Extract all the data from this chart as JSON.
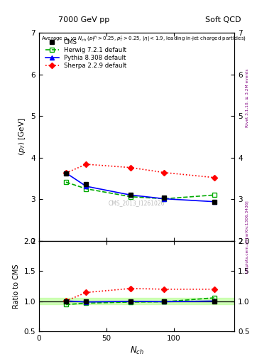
{
  "title_left": "7000 GeV pp",
  "title_right": "Soft QCD",
  "watermark": "CMS_2013_I1261026",
  "rivet_label": "Rivet 3.1.10, ≥ 3.2M events",
  "mcplots_label": "mcplots.cern.ch [arXiv:1306.3436]",
  "cms_x": [
    20,
    35,
    68,
    93,
    130
  ],
  "cms_y": [
    3.62,
    3.36,
    3.11,
    3.04,
    2.94
  ],
  "cms_color": "black",
  "herwig_x": [
    20,
    35,
    68,
    93,
    130
  ],
  "herwig_y": [
    3.41,
    3.25,
    3.06,
    3.01,
    3.1
  ],
  "herwig_color": "#00aa00",
  "pythia_x": [
    20,
    35,
    68,
    93,
    130
  ],
  "pythia_y": [
    3.63,
    3.31,
    3.1,
    3.01,
    2.94
  ],
  "pythia_color": "blue",
  "sherpa_x": [
    20,
    35,
    68,
    93,
    130
  ],
  "sherpa_y": [
    3.63,
    3.84,
    3.76,
    3.64,
    3.52
  ],
  "sherpa_color": "red",
  "herwig_ratio": [
    0.942,
    0.967,
    0.984,
    0.989,
    1.054
  ],
  "pythia_ratio": [
    1.003,
    0.985,
    0.996,
    0.99,
    1.001
  ],
  "sherpa_ratio": [
    1.003,
    1.143,
    1.209,
    1.197,
    1.197
  ],
  "ylim_main": [
    2.0,
    7.0
  ],
  "ylim_ratio": [
    0.5,
    2.0
  ],
  "xlim": [
    0,
    145
  ],
  "xticks": [
    0,
    50,
    100
  ],
  "yticks_main": [
    2,
    3,
    4,
    5,
    6,
    7
  ],
  "yticks_ratio": [
    0.5,
    1.0,
    1.5,
    2.0
  ],
  "cms_band_color": "#bbff99",
  "cms_band_alpha": 0.7
}
